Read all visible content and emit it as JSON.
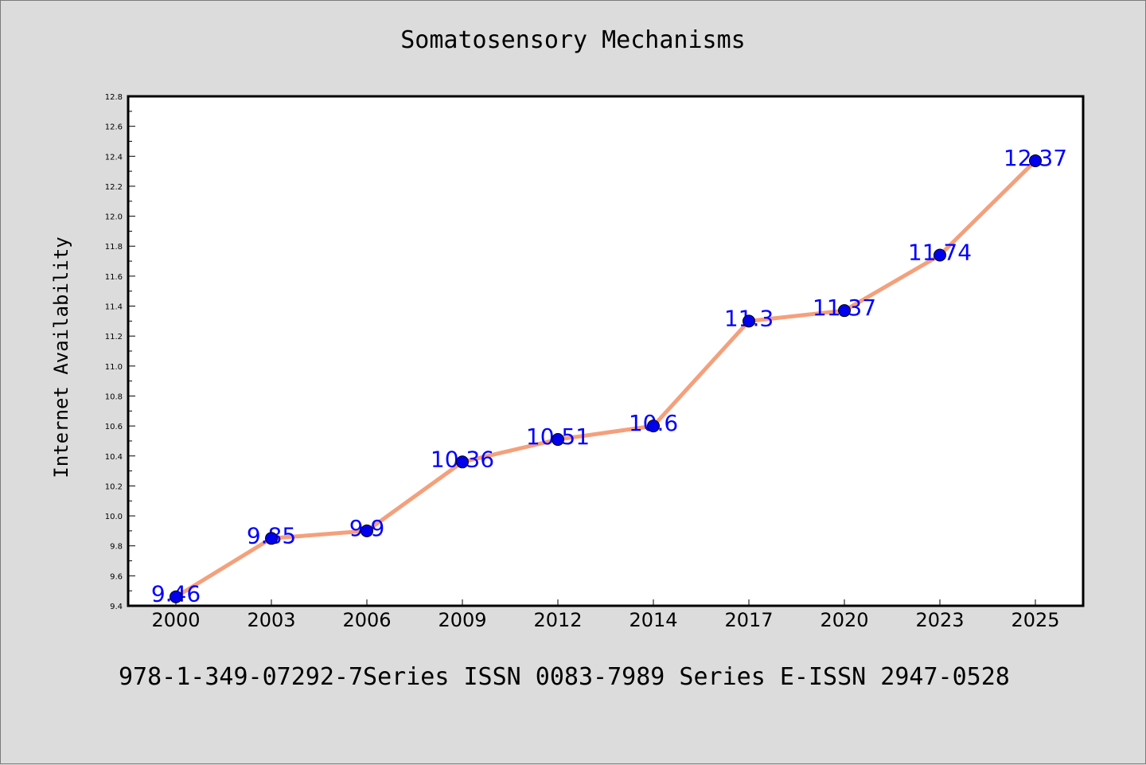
{
  "chart_data": {
    "type": "line",
    "title": "Somatosensory Mechanisms",
    "xlabel": "",
    "ylabel": "Internet Availability",
    "categories": [
      "2000",
      "2003",
      "2006",
      "2009",
      "2012",
      "2014",
      "2017",
      "2020",
      "2023",
      "2025"
    ],
    "series": [
      {
        "values": [
          9.46,
          9.85,
          9.9,
          10.36,
          10.51,
          10.6,
          11.3,
          11.37,
          11.74,
          12.37
        ],
        "labels": [
          "9.46",
          "9.85",
          "9.9",
          "10.36",
          "10.51",
          "10.6",
          "11.3",
          "11.37",
          "11.74",
          "12.37"
        ]
      }
    ],
    "ylim": [
      9.4,
      12.8
    ],
    "yticks": [
      "9.4",
      "9.6",
      "9.8",
      "10.0",
      "10.2",
      "10.4",
      "10.6",
      "10.8",
      "11.0",
      "11.2",
      "11.4",
      "11.6",
      "11.8",
      "12.0",
      "12.2",
      "12.4",
      "12.6",
      "12.8"
    ],
    "grid": false,
    "colors": {
      "line": "#f4a07c",
      "marker": "#0000ee",
      "data_label": "#0000ff",
      "plot_bg": "#ffffff",
      "figure_bg": "#dcdcdc"
    }
  },
  "footer": "978-1-349-07292-7Series ISSN 0083-7989 Series E-ISSN 2947-0528"
}
